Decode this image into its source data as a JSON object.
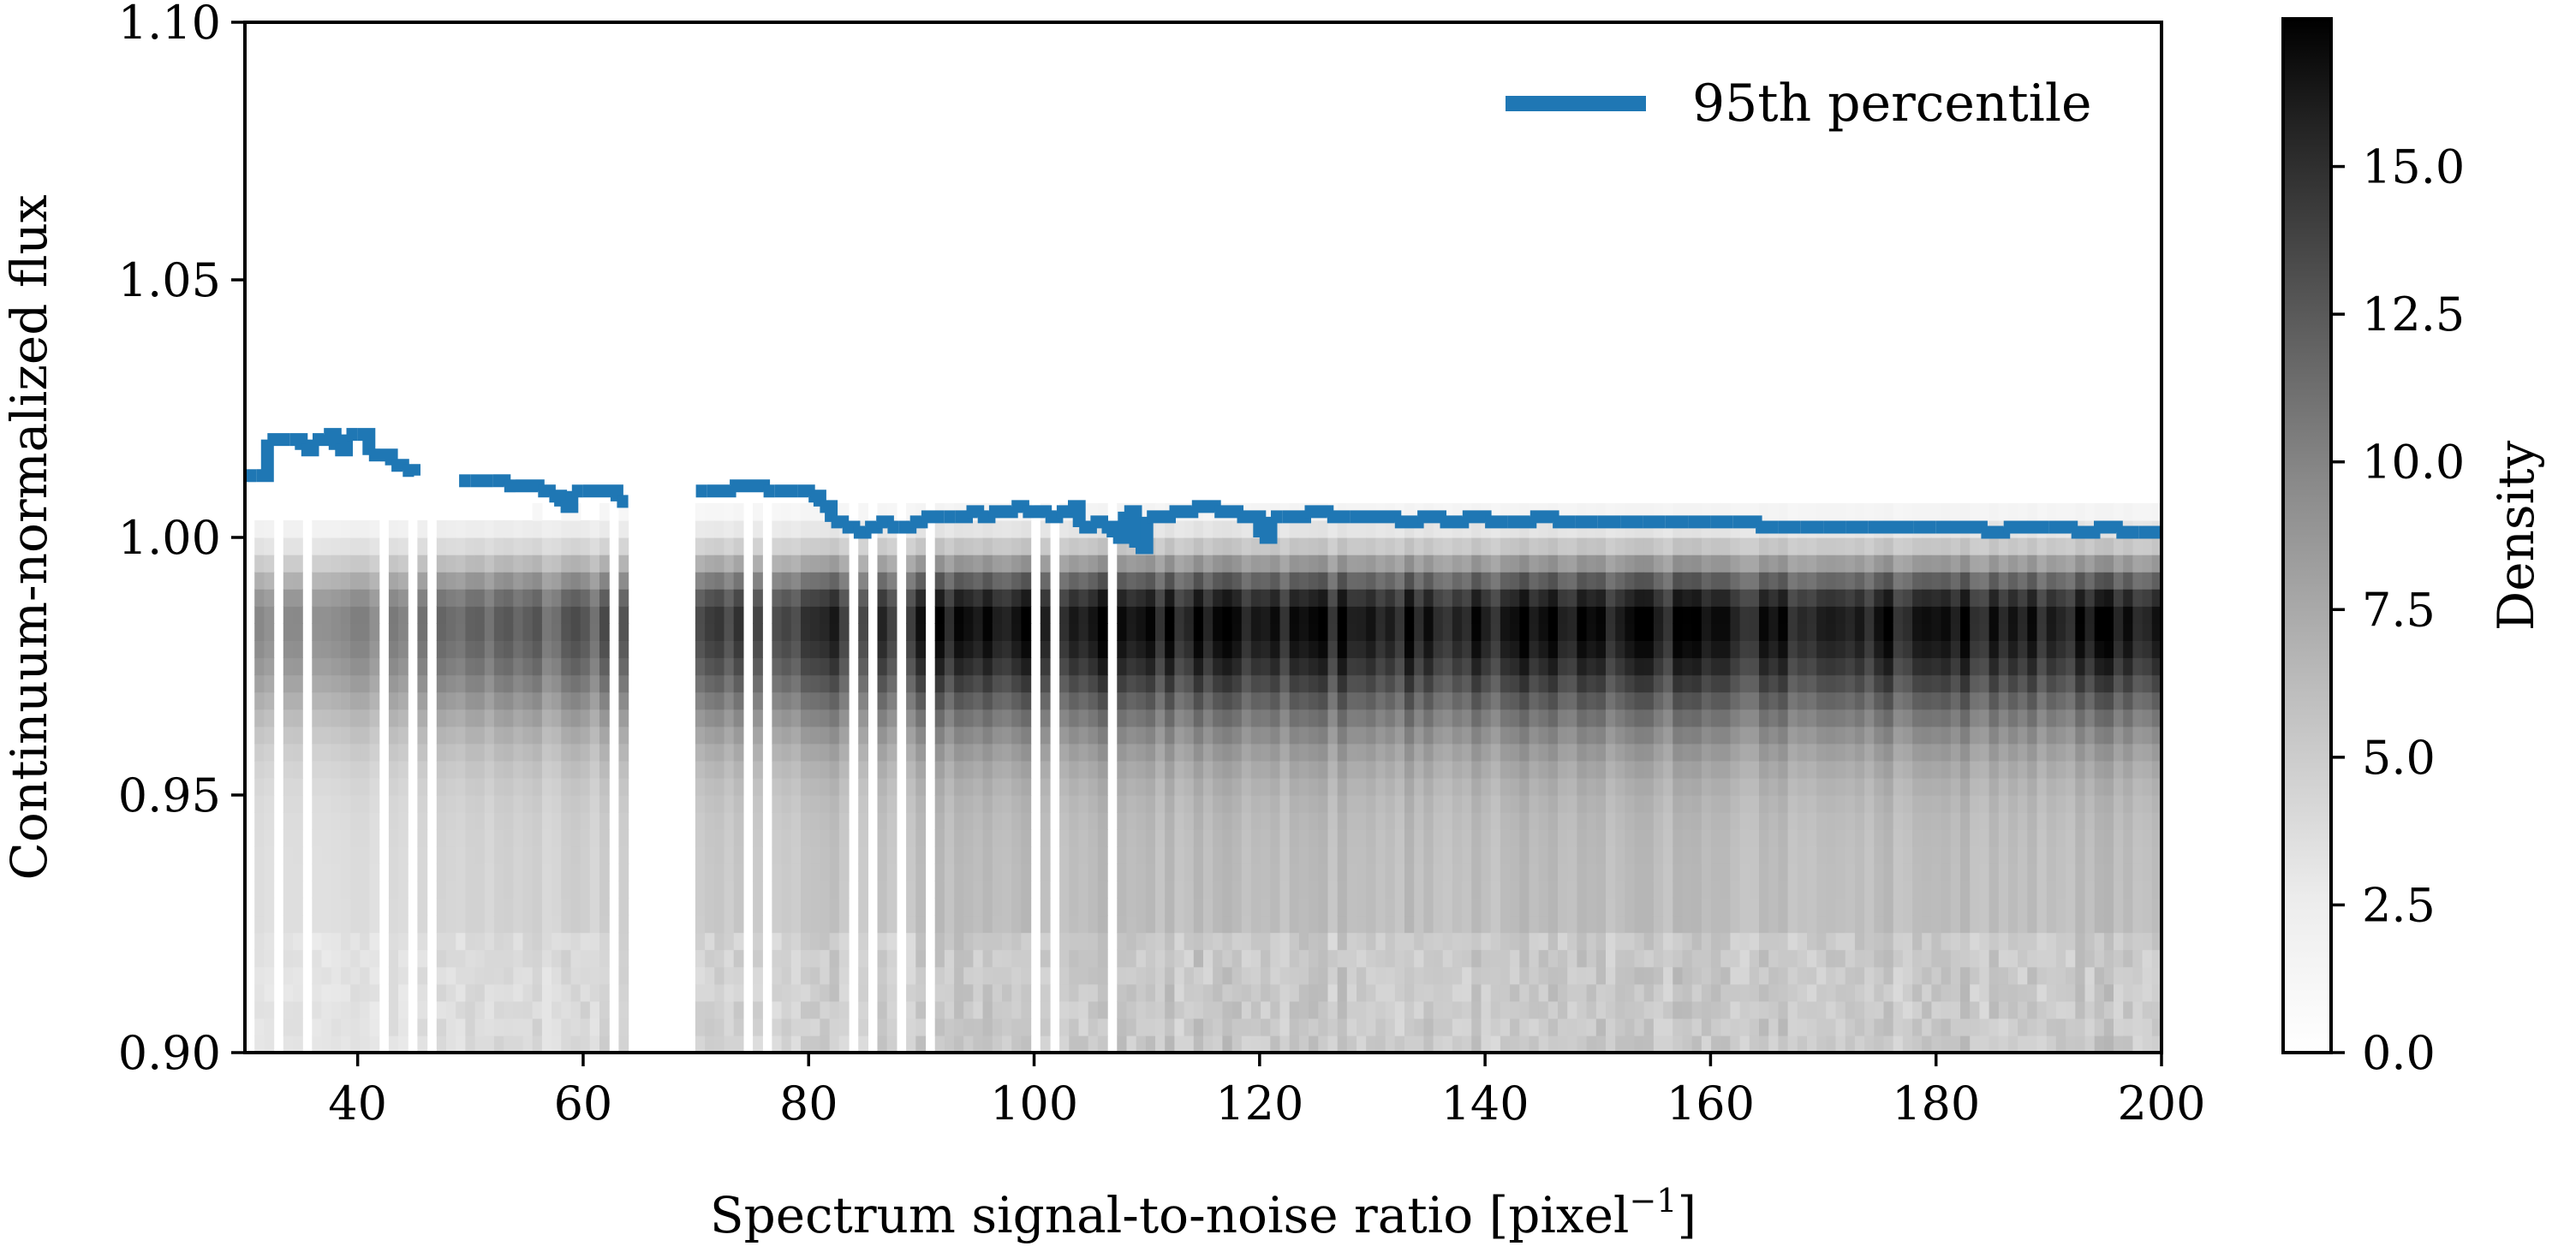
{
  "chart_data": {
    "type": "heatmap",
    "xlabel": "Spectrum signal-to-noise ratio [pixel",
    "xlabel_sup": "−1",
    "xlabel_tail": "]",
    "ylabel": "Continuum-normalized flux",
    "xlim": [
      30,
      200
    ],
    "ylim": [
      0.9,
      1.1
    ],
    "xticks": [
      40,
      60,
      80,
      100,
      120,
      140,
      160,
      180,
      200
    ],
    "xtick_labels": [
      "40",
      "60",
      "80",
      "100",
      "120",
      "140",
      "160",
      "180",
      "200"
    ],
    "yticks": [
      0.9,
      0.95,
      1.0,
      1.05,
      1.1
    ],
    "ytick_labels": [
      "0.90",
      "0.95",
      "1.00",
      "1.05",
      "1.10"
    ],
    "grid": false,
    "colormap": "Greys",
    "colorbar": {
      "label": "Density",
      "range": [
        0,
        17.5
      ],
      "ticks": [
        0.0,
        2.5,
        5.0,
        7.5,
        10.0,
        12.5,
        15.0
      ],
      "tick_labels": [
        "0.0",
        "2.5",
        "5.0",
        "7.5",
        "10.0",
        "12.5",
        "15.0"
      ]
    },
    "legend": {
      "placement": "top-right"
    },
    "series": [
      {
        "name": "95th percentile",
        "color": "#1f77b4",
        "style": "step",
        "points": [
          [
            30,
            1.012
          ],
          [
            31,
            1.012
          ],
          [
            32,
            1.019
          ],
          [
            34,
            1.019
          ],
          [
            35,
            1.017
          ],
          [
            36,
            1.019
          ],
          [
            37,
            1.02
          ],
          [
            38,
            1.017
          ],
          [
            39,
            1.02
          ],
          [
            40,
            1.02
          ],
          [
            41,
            1.016
          ],
          [
            42,
            1.016
          ],
          [
            43,
            1.014
          ],
          [
            44,
            1.013
          ],
          [
            45,
            1.012
          ],
          [
            49,
            1.011
          ],
          [
            50,
            1.011
          ],
          [
            51,
            1.011
          ],
          [
            52,
            1.011
          ],
          [
            53,
            1.01
          ],
          [
            54,
            1.01
          ],
          [
            56,
            1.009
          ],
          [
            57,
            1.008
          ],
          [
            58,
            1.006
          ],
          [
            59,
            1.009
          ],
          [
            60,
            1.009
          ],
          [
            63,
            1.007
          ],
          [
            64,
            1.007
          ],
          [
            70,
            1.009
          ],
          [
            71,
            1.009
          ],
          [
            73,
            1.01
          ],
          [
            76,
            1.009
          ],
          [
            77,
            1.009
          ],
          [
            79,
            1.009
          ],
          [
            80,
            1.008
          ],
          [
            81,
            1.006
          ],
          [
            82,
            1.003
          ],
          [
            83,
            1.002
          ],
          [
            84,
            1.001
          ],
          [
            85,
            1.002
          ],
          [
            86,
            1.003
          ],
          [
            87,
            1.002
          ],
          [
            88,
            1.002
          ],
          [
            89,
            1.003
          ],
          [
            90,
            1.004
          ],
          [
            91,
            1.004
          ],
          [
            92,
            1.004
          ],
          [
            93,
            1.004
          ],
          [
            94,
            1.005
          ],
          [
            95,
            1.004
          ],
          [
            96,
            1.005
          ],
          [
            97,
            1.005
          ],
          [
            98,
            1.006
          ],
          [
            99,
            1.005
          ],
          [
            100,
            1.005
          ],
          [
            101,
            1.004
          ],
          [
            102,
            1.005
          ],
          [
            103,
            1.006
          ],
          [
            104,
            1.002
          ],
          [
            105,
            1.003
          ],
          [
            106,
            1.002
          ],
          [
            107,
            1.0
          ],
          [
            108,
            1.005
          ],
          [
            109,
            0.998
          ],
          [
            110,
            1.004
          ],
          [
            112,
            1.005
          ],
          [
            114,
            1.006
          ],
          [
            116,
            1.005
          ],
          [
            118,
            1.004
          ],
          [
            120,
            1.0
          ],
          [
            121,
            1.004
          ],
          [
            122,
            1.004
          ],
          [
            124,
            1.005
          ],
          [
            126,
            1.004
          ],
          [
            128,
            1.004
          ],
          [
            130,
            1.004
          ],
          [
            132,
            1.003
          ],
          [
            134,
            1.004
          ],
          [
            136,
            1.003
          ],
          [
            138,
            1.004
          ],
          [
            140,
            1.003
          ],
          [
            142,
            1.003
          ],
          [
            144,
            1.004
          ],
          [
            146,
            1.003
          ],
          [
            148,
            1.003
          ],
          [
            150,
            1.003
          ],
          [
            152,
            1.003
          ],
          [
            154,
            1.003
          ],
          [
            156,
            1.003
          ],
          [
            158,
            1.003
          ],
          [
            160,
            1.003
          ],
          [
            162,
            1.003
          ],
          [
            164,
            1.002
          ],
          [
            166,
            1.002
          ],
          [
            168,
            1.002
          ],
          [
            170,
            1.002
          ],
          [
            172,
            1.002
          ],
          [
            174,
            1.002
          ],
          [
            176,
            1.002
          ],
          [
            178,
            1.002
          ],
          [
            180,
            1.002
          ],
          [
            182,
            1.002
          ],
          [
            184,
            1.001
          ],
          [
            186,
            1.002
          ],
          [
            188,
            1.002
          ],
          [
            190,
            1.002
          ],
          [
            192,
            1.001
          ],
          [
            194,
            1.002
          ],
          [
            196,
            1.001
          ],
          [
            198,
            1.001
          ],
          [
            200,
            1.001
          ]
        ]
      }
    ],
    "density_profile": {
      "peak_flux": 0.984,
      "empty_snr_ranges": [
        [
          64,
          70
        ],
        [
          76,
          77
        ]
      ],
      "notes_removed": true
    }
  }
}
